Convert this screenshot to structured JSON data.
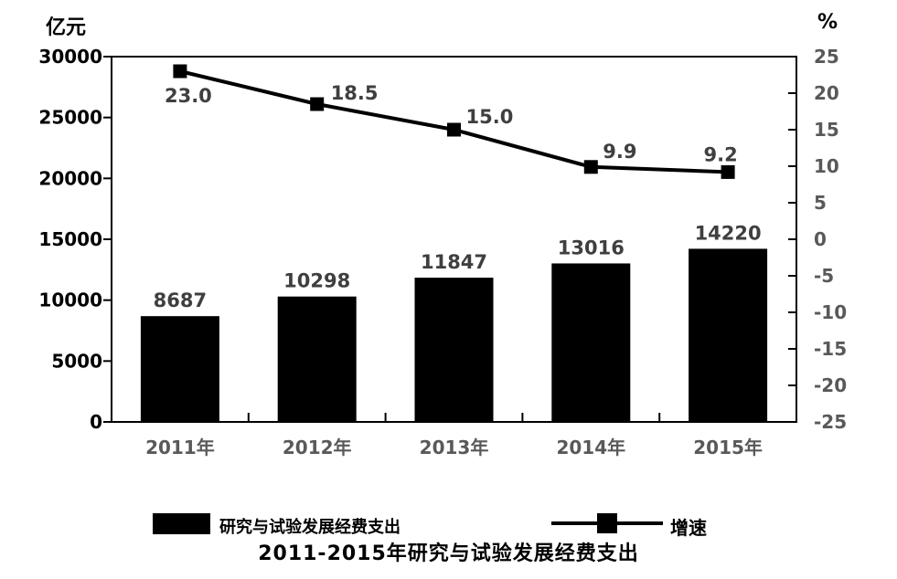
{
  "units": {
    "left": "亿元",
    "right": "%"
  },
  "chart_data": {
    "type": "bar+line",
    "categories": [
      "2011年",
      "2012年",
      "2013年",
      "2014年",
      "2015年"
    ],
    "series": [
      {
        "name": "研究与试验发展经费支出",
        "type": "bar",
        "axis": "left",
        "values": [
          8687,
          10298,
          11847,
          13016,
          14220
        ],
        "labels": [
          "8687",
          "10298",
          "11847",
          "13016",
          "14220"
        ]
      },
      {
        "name": "增速",
        "type": "line",
        "axis": "right",
        "values": [
          23.0,
          18.5,
          15.0,
          9.9,
          9.2
        ],
        "labels": [
          "23.0",
          "18.5",
          "15.0",
          "9.9",
          "9.2"
        ]
      }
    ],
    "left_axis": {
      "unit": "亿元",
      "min": 0,
      "max": 30000,
      "step": 5000,
      "tick_labels": [
        "30000",
        "25000",
        "20000",
        "15000",
        "10000",
        "5000",
        "0"
      ]
    },
    "right_axis": {
      "unit": "%",
      "min": -25,
      "max": 25,
      "step": 5,
      "tick_labels": [
        "25",
        "20",
        "15",
        "10",
        "5",
        "0",
        "-5",
        "-10",
        "-15",
        "-20",
        "-25"
      ]
    },
    "legend": [
      {
        "label": "研究与试验发展经费支出",
        "marker": "bar-swatch"
      },
      {
        "label": "增速",
        "marker": "line-with-square"
      }
    ],
    "legend_position": "bottom",
    "grid": "off",
    "title": "2011-2015年研究与试验发展经费支出"
  },
  "colors": {
    "bar": "#000000",
    "line": "#000000",
    "marker": "#000000",
    "border": "#000000",
    "data_label": "#3f3f3f",
    "left_tick_label": "#000000",
    "right_tick_label": "#595959",
    "category_label": "#595959",
    "background": "#ffffff"
  }
}
